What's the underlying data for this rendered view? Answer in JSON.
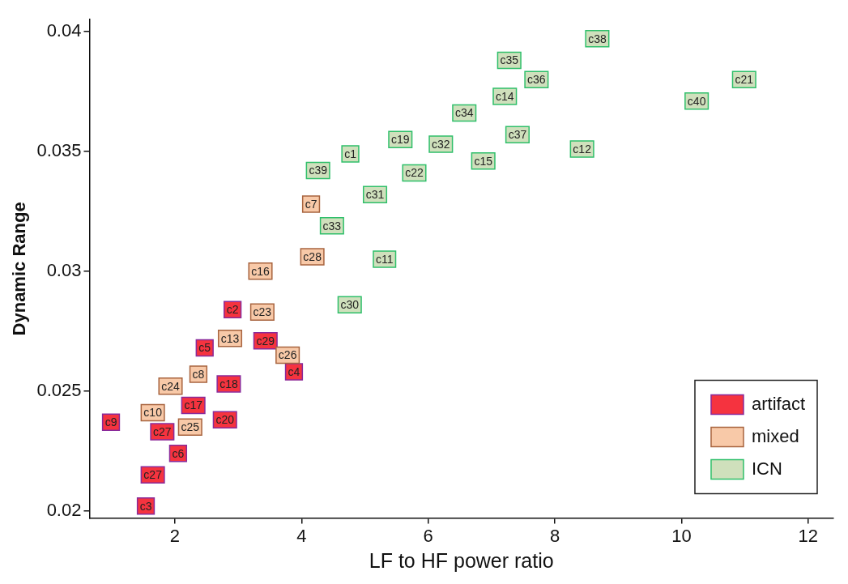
{
  "chart_data": {
    "type": "scatter",
    "xlabel": "LF to HF power ratio",
    "ylabel": "Dynamic Range",
    "xlim": [
      0.65,
      12.4
    ],
    "ylim": [
      0.0197,
      0.0405
    ],
    "xticks": [
      2,
      4,
      6,
      8,
      10,
      12
    ],
    "yticks": [
      0.02,
      0.025,
      0.03,
      0.035,
      0.04
    ],
    "grid": false,
    "legend": "bottom right",
    "marker": "square",
    "series": [
      {
        "name": "artifact",
        "color": "#f5333f",
        "x": [
          0.99,
          2.91,
          2.47,
          2.85,
          2.29,
          2.79,
          1.8,
          2.05,
          1.65,
          1.54,
          3.43,
          3.88
        ],
        "values": [
          0.0237,
          0.0284,
          0.0268,
          0.0253,
          0.0244,
          0.0238,
          0.0233,
          0.0224,
          0.0215,
          0.0202,
          0.0271,
          0.0258
        ],
        "value_labels": [
          "c9",
          "c2",
          "c5",
          "c18",
          "c17",
          "c20",
          "c27",
          "c6",
          "c27",
          "c3",
          "c29",
          "c4"
        ]
      },
      {
        "name": "mixed",
        "color": "#f8c9a8",
        "x": [
          4.15,
          4.17,
          3.35,
          3.38,
          2.87,
          3.78,
          2.37,
          1.93,
          1.65,
          2.24
        ],
        "values": [
          0.0328,
          0.0306,
          0.03,
          0.0283,
          0.0272,
          0.0265,
          0.0257,
          0.0252,
          0.0241,
          0.0235
        ],
        "value_labels": [
          "c7",
          "c28",
          "c16",
          "c23",
          "c13",
          "c26",
          "c8",
          "c24",
          "c10",
          "c25"
        ]
      },
      {
        "name": "ICN",
        "color": "#cfe0bc",
        "x": [
          8.67,
          7.28,
          7.71,
          7.21,
          6.57,
          7.41,
          5.56,
          6.2,
          4.77,
          6.87,
          8.43,
          5.78,
          4.26,
          10.24,
          10.99,
          5.16,
          4.48,
          5.31,
          4.76
        ],
        "values": [
          0.0397,
          0.0388,
          0.038,
          0.0373,
          0.0366,
          0.0357,
          0.0355,
          0.0353,
          0.0349,
          0.0346,
          0.0351,
          0.0341,
          0.0342,
          0.0371,
          0.038,
          0.0332,
          0.0319,
          0.0305,
          0.0286
        ],
        "value_labels": [
          "c38",
          "c35",
          "c36",
          "c14",
          "c34",
          "c37",
          "c19",
          "c32",
          "c1",
          "c15",
          "c12",
          "c22",
          "c39",
          "c40",
          "c21",
          "c31",
          "c33",
          "c11",
          "c30"
        ]
      }
    ]
  }
}
